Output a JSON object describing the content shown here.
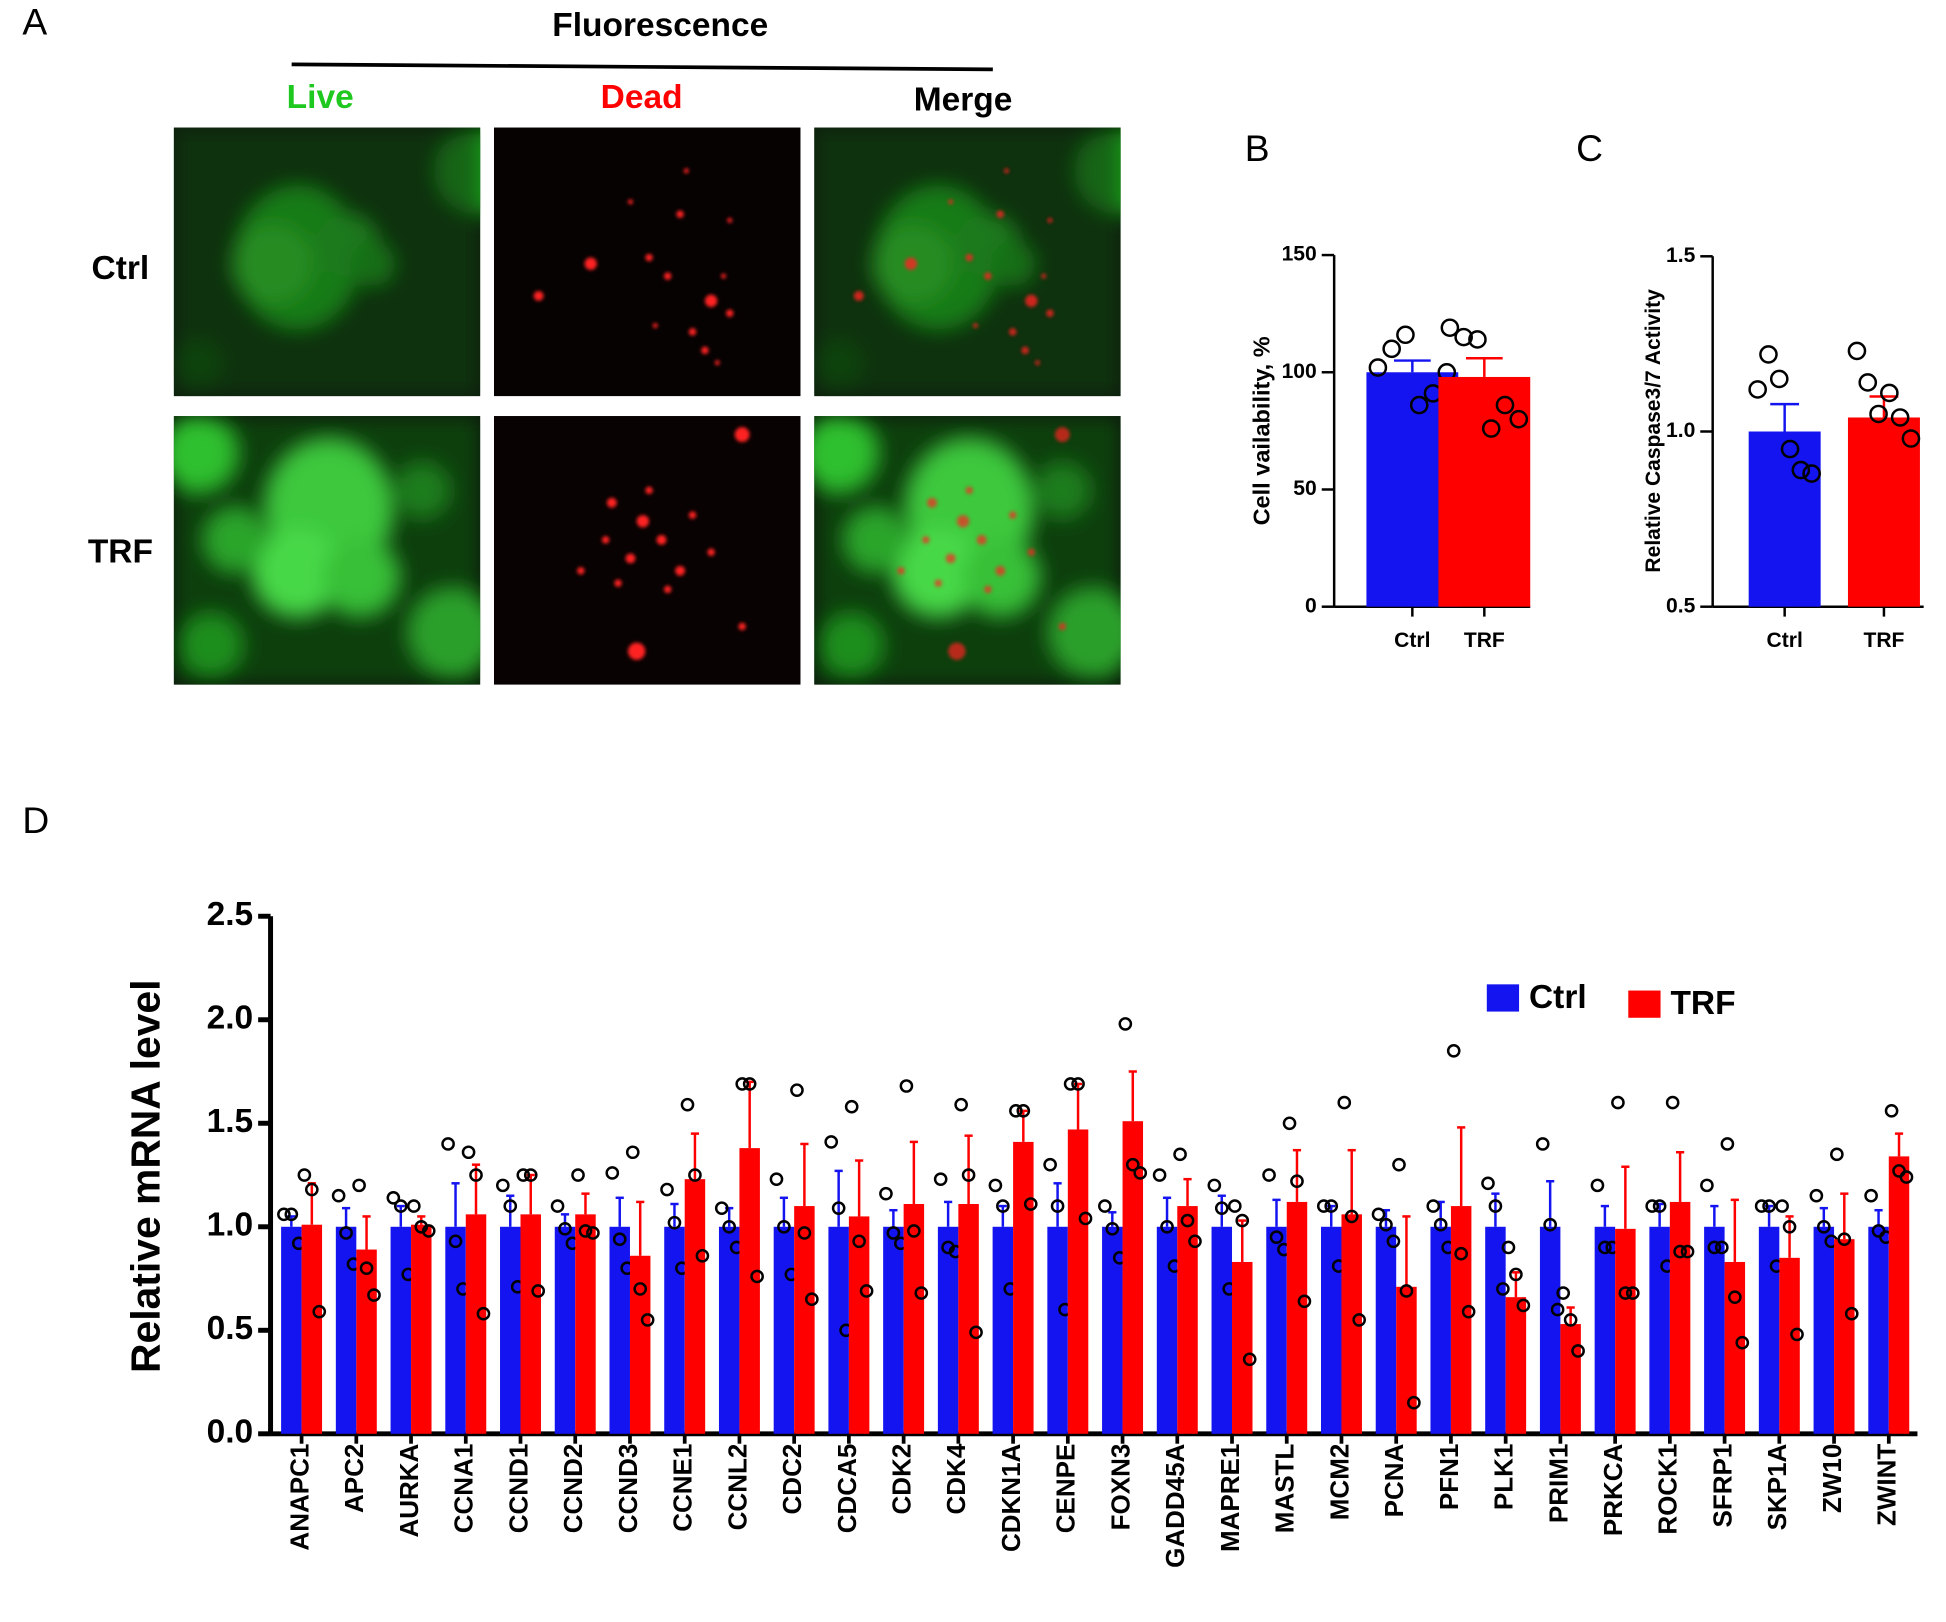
{
  "panel_a": {
    "label": "A",
    "title": "Fluorescence",
    "columns": [
      "Live",
      "Dead",
      "Merge"
    ],
    "rows": [
      "Ctrl",
      "TRF"
    ]
  },
  "chart_data": [
    {
      "type": "bar",
      "panel_label": "B",
      "ylabel": "Cell vailability, %",
      "categories": [
        "Ctrl",
        "TRF"
      ],
      "values": [
        100,
        98
      ],
      "errors": [
        5,
        8
      ],
      "colors": [
        "#1414f0",
        "#ff0000"
      ],
      "points": [
        [
          102,
          110,
          116,
          86,
          91,
          100
        ],
        [
          119,
          115,
          114,
          76,
          86,
          80
        ]
      ],
      "ylim": [
        0,
        150
      ],
      "yticks": [
        0,
        50,
        100,
        150
      ]
    },
    {
      "type": "bar",
      "panel_label": "C",
      "ylabel": "Relative Caspase3/7 Activity",
      "categories": [
        "Ctrl",
        "TRF"
      ],
      "values": [
        1.0,
        1.04
      ],
      "errors": [
        0.078,
        0.06
      ],
      "colors": [
        "#1414f0",
        "#ff0000"
      ],
      "points": [
        [
          1.12,
          1.22,
          1.15,
          0.95,
          0.89,
          0.88
        ],
        [
          1.23,
          1.14,
          1.05,
          1.11,
          1.04,
          0.98
        ]
      ],
      "ylim": [
        0.5,
        1.5
      ],
      "yticks": [
        0.5,
        {
          "value": 1,
          "label": "1.0"
        },
        1.5
      ]
    },
    {
      "type": "grouped_bar",
      "panel_label": "D",
      "ylabel": "Relative mRNA level",
      "categories": [
        "ANAPC1",
        "APC2",
        "AURKA",
        "CCNA1",
        "CCND1",
        "CCND2",
        "CCND3",
        "CCNE1",
        "CCNL2",
        "CDC2",
        "CDCA5",
        "CDK2",
        "CDK4",
        "CDKN1A",
        "CENPE",
        "FOXN3",
        "GADD45A",
        "MAPRE1",
        "MASTL",
        "MCM2",
        "PCNA",
        "PFN1",
        "PLK1",
        "PRIM1",
        "PRKCA",
        "ROCK1",
        "SFRP1",
        "SKP1A",
        "ZW10",
        "ZWINT"
      ],
      "series": [
        {
          "name": "Ctrl",
          "color": "#1414f0",
          "values": [
            1,
            1,
            1,
            1,
            1,
            1,
            1,
            1,
            1,
            1,
            1,
            1,
            1,
            1,
            1,
            1,
            1,
            1,
            1,
            1,
            1,
            1,
            1,
            1,
            1,
            1,
            1,
            1,
            1,
            1
          ],
          "errors": [
            0.05,
            0.09,
            0.1,
            0.21,
            0.15,
            0.06,
            0.14,
            0.11,
            0.09,
            0.14,
            0.27,
            0.08,
            0.12,
            0.1,
            0.21,
            0.07,
            0.14,
            0.15,
            0.13,
            0.1,
            0.08,
            0.12,
            0.16,
            0.22,
            0.1,
            0.11,
            0.1,
            0.1,
            0.09,
            0.08
          ],
          "points": [
            [
              1.06,
              1.06,
              0.92
            ],
            [
              1.15,
              0.97,
              0.82
            ],
            [
              1.14,
              1.1,
              0.77
            ],
            [
              1.4,
              0.93,
              0.7
            ],
            [
              1.2,
              1.1,
              0.71
            ],
            [
              1.1,
              0.99,
              0.92
            ],
            [
              1.26,
              0.94,
              0.8
            ],
            [
              1.18,
              1.02,
              0.8
            ],
            [
              1.09,
              1.0,
              0.9
            ],
            [
              1.23,
              1.0,
              0.77
            ],
            [
              1.41,
              1.09,
              0.5
            ],
            [
              1.16,
              0.97,
              0.92
            ],
            [
              1.23,
              0.9,
              0.88
            ],
            [
              1.2,
              1.1,
              0.7
            ],
            [
              1.3,
              1.1,
              0.6
            ],
            [
              1.1,
              0.99,
              0.85
            ],
            [
              1.25,
              1.0,
              0.81
            ],
            [
              1.2,
              1.09,
              0.7
            ],
            [
              1.25,
              0.95,
              0.89
            ],
            [
              1.1,
              1.1,
              0.81
            ],
            [
              1.06,
              1.01,
              0.93
            ],
            [
              1.1,
              1.01,
              0.9
            ],
            [
              1.21,
              1.1,
              0.7
            ],
            [
              1.4,
              1.01,
              0.6
            ],
            [
              1.2,
              0.9,
              0.9
            ],
            [
              1.1,
              1.1,
              0.81
            ],
            [
              1.2,
              0.9,
              0.9
            ],
            [
              1.1,
              1.1,
              0.81
            ],
            [
              1.15,
              1.0,
              0.93
            ],
            [
              1.15,
              0.98,
              0.95
            ]
          ]
        },
        {
          "name": "TRF",
          "color": "#ff0000",
          "values": [
            1.01,
            0.89,
            1.01,
            1.06,
            1.06,
            1.06,
            0.86,
            1.23,
            1.38,
            1.1,
            1.05,
            1.11,
            1.11,
            1.41,
            1.47,
            1.51,
            1.1,
            0.83,
            1.12,
            1.06,
            0.71,
            1.1,
            0.66,
            0.53,
            0.99,
            1.12,
            0.83,
            0.85,
            0.94,
            1.34
          ],
          "errors": [
            0.2,
            0.16,
            0.04,
            0.24,
            0.19,
            0.1,
            0.26,
            0.22,
            0.32,
            0.3,
            0.27,
            0.3,
            0.33,
            0.15,
            0.22,
            0.24,
            0.13,
            0.2,
            0.25,
            0.31,
            0.34,
            0.38,
            0.12,
            0.08,
            0.3,
            0.24,
            0.3,
            0.2,
            0.22,
            0.11
          ],
          "points": [
            [
              1.25,
              1.18,
              0.59
            ],
            [
              1.2,
              0.8,
              0.67
            ],
            [
              1.1,
              1.0,
              0.98
            ],
            [
              1.36,
              1.25,
              0.58
            ],
            [
              1.25,
              1.25,
              0.69
            ],
            [
              1.25,
              0.98,
              0.97
            ],
            [
              1.36,
              0.7,
              0.55
            ],
            [
              1.59,
              1.25,
              0.86
            ],
            [
              1.69,
              1.69,
              0.76
            ],
            [
              1.66,
              0.97,
              0.65
            ],
            [
              1.58,
              0.93,
              0.69
            ],
            [
              1.68,
              0.98,
              0.68
            ],
            [
              1.59,
              1.25,
              0.49
            ],
            [
              1.56,
              1.56,
              1.11
            ],
            [
              1.69,
              1.69,
              1.04
            ],
            [
              1.98,
              1.3,
              1.26
            ],
            [
              1.35,
              1.03,
              0.93
            ],
            [
              1.1,
              1.03,
              0.36
            ],
            [
              1.5,
              1.22,
              0.64
            ],
            [
              1.6,
              1.05,
              0.55
            ],
            [
              1.3,
              0.69,
              0.15
            ],
            [
              1.85,
              0.87,
              0.59
            ],
            [
              0.9,
              0.77,
              0.62
            ],
            [
              0.68,
              0.55,
              0.4
            ],
            [
              1.6,
              0.68,
              0.68
            ],
            [
              1.6,
              0.88,
              0.88
            ],
            [
              1.4,
              0.66,
              0.44
            ],
            [
              1.1,
              1.0,
              0.48
            ],
            [
              1.35,
              0.94,
              0.58
            ],
            [
              1.56,
              1.27,
              1.24
            ]
          ]
        }
      ],
      "ylim": [
        0,
        2.5
      ],
      "yticks": [
        {
          "value": 0,
          "label": "0.0"
        },
        0.5,
        {
          "value": 1,
          "label": "1.0"
        },
        1.5,
        {
          "value": 2,
          "label": "2.0"
        },
        2.5
      ]
    }
  ]
}
